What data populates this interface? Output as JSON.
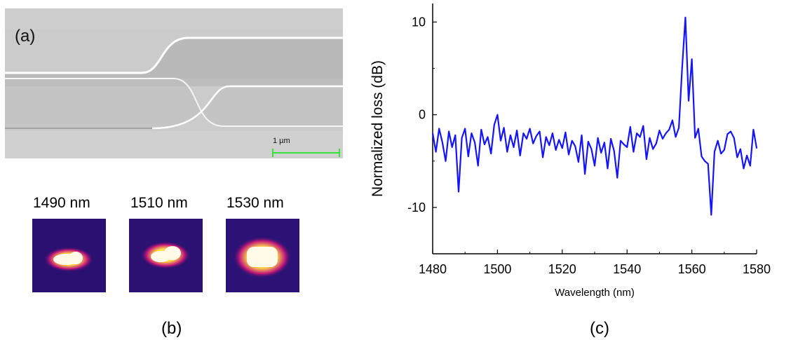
{
  "panel_a": {
    "label": "(a)",
    "scale_bar_label": "1 µm",
    "colors": {
      "scale_bar": "#35e23b"
    }
  },
  "panel_b": {
    "caption": "(b)",
    "modes": [
      {
        "label": "1490 nm"
      },
      {
        "label": "1510 nm"
      },
      {
        "label": "1530 nm"
      }
    ]
  },
  "panel_c": {
    "caption": "(c)"
  },
  "chart_data": {
    "type": "line",
    "xlabel": "Wavelength (nm)",
    "ylabel": "Normalized loss (dB)",
    "xlim": [
      1480,
      1580
    ],
    "ylim": [
      -15,
      12
    ],
    "xticks": [
      1480,
      1500,
      1520,
      1540,
      1560,
      1580
    ],
    "yticks": [
      10,
      0,
      -10
    ],
    "line_color": "#1414ff",
    "series": [
      {
        "x": [
          1480,
          1481,
          1482,
          1483,
          1484,
          1485,
          1486,
          1487,
          1488,
          1489,
          1490,
          1491,
          1492,
          1493,
          1494,
          1495,
          1496,
          1497,
          1498,
          1499,
          1500,
          1501,
          1502,
          1503,
          1504,
          1505,
          1506,
          1507,
          1508,
          1509,
          1510,
          1511,
          1512,
          1513,
          1514,
          1515,
          1516,
          1517,
          1518,
          1519,
          1520,
          1521,
          1522,
          1523,
          1524,
          1525,
          1526,
          1527,
          1528,
          1529,
          1530,
          1531,
          1532,
          1533,
          1534,
          1535,
          1536,
          1537,
          1538,
          1539,
          1540,
          1541,
          1542,
          1543,
          1544,
          1545,
          1546,
          1547,
          1548,
          1549,
          1550,
          1551,
          1552,
          1553,
          1554,
          1555,
          1556,
          1557,
          1558,
          1559,
          1560,
          1561,
          1562,
          1563,
          1564,
          1565,
          1566,
          1567,
          1568,
          1569,
          1570,
          1571,
          1572,
          1573,
          1574,
          1575,
          1576,
          1577,
          1578,
          1579,
          1580
        ],
        "y": [
          -2,
          -4,
          -1.5,
          -3,
          -5,
          -1.8,
          -3.5,
          -2.2,
          -8.3,
          -2.5,
          -1.5,
          -4.5,
          -2,
          -3,
          -5.5,
          -1.6,
          -3.2,
          -2.4,
          -4.2,
          -1.1,
          0,
          -2.8,
          -1.4,
          -4,
          -2.2,
          -3.5,
          -1.7,
          -4.4,
          -2,
          -2.6,
          -1.5,
          -3.1,
          -2.3,
          -1.8,
          -4.6,
          -2.4,
          -3.3,
          -2,
          -3.8,
          -2.7,
          -3.6,
          -1.9,
          -4.3,
          -2.8,
          -3.4,
          -5.1,
          -2.2,
          -6.4,
          -2.9,
          -3.7,
          -5.5,
          -2.5,
          -4.1,
          -3,
          -5.8,
          -2.6,
          -3.9,
          -6.8,
          -2.8,
          -3.2,
          -3.5,
          -1.3,
          -4,
          -2,
          -2.4,
          -1.2,
          -4.8,
          -2.5,
          -3.7,
          -3.1,
          -1.7,
          -2.6,
          -2,
          -1.6,
          -0.6,
          -2.4,
          -1.4,
          5,
          10.5,
          1.5,
          6,
          -2.5,
          -1.5,
          -4.5,
          -5,
          -5.3,
          -10.8,
          -4,
          -2.8,
          -4.2,
          -3.8,
          -2.1,
          -1.8,
          -2.5,
          -4.6,
          -3.7,
          -5.8,
          -4.4,
          -5.5,
          -1.6,
          -3.6
        ]
      }
    ]
  }
}
